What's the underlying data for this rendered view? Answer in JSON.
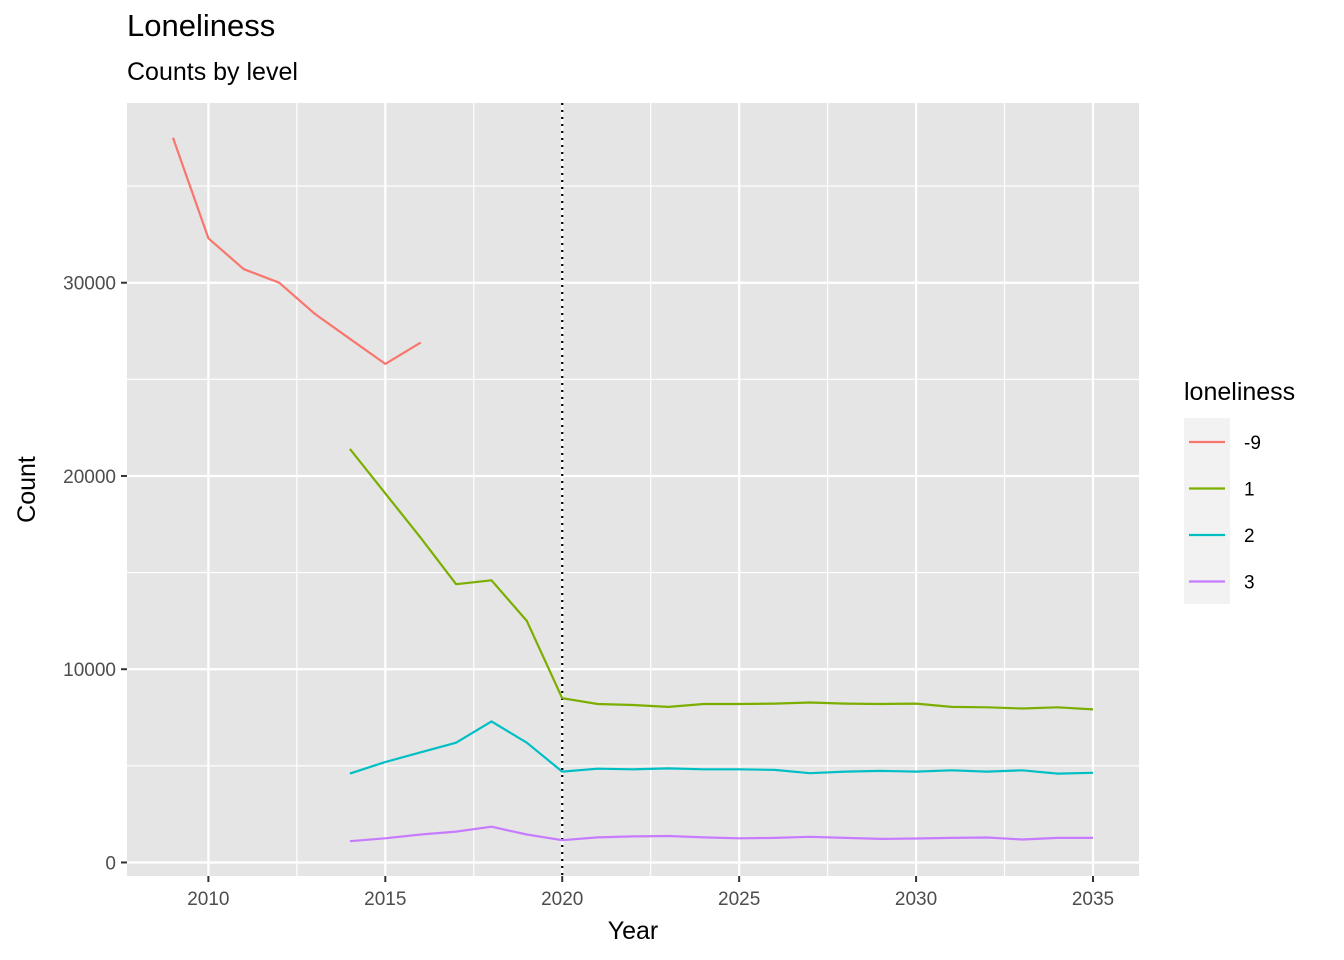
{
  "chart_data": {
    "type": "line",
    "title": "Loneliness",
    "subtitle": "Counts by level",
    "xlabel": "Year",
    "ylabel": "Count",
    "xlim": [
      2007.7,
      2036.3
    ],
    "ylim": [
      -700,
      39300
    ],
    "x_ticks": [
      2010,
      2015,
      2020,
      2025,
      2030,
      2035
    ],
    "y_ticks": [
      0,
      10000,
      20000,
      30000
    ],
    "y_tick_labels": [
      "0",
      "10000",
      "20000",
      "30000"
    ],
    "grid": true,
    "panel_background": "#e5e5e5",
    "vline": {
      "x": 2020,
      "style": "dotted",
      "color": "#000000"
    },
    "legend": {
      "title": "loneliness",
      "position": "right"
    },
    "series": [
      {
        "name": "-9",
        "color": "#f8766d",
        "x": [
          2009,
          2010,
          2011,
          2012,
          2013,
          2014,
          2015,
          2016
        ],
        "y": [
          37500,
          32300,
          30700,
          30000,
          28400,
          27100,
          25800,
          26900
        ]
      },
      {
        "name": "1",
        "color": "#7cae00",
        "x": [
          2014,
          2015,
          2016,
          2017,
          2018,
          2019,
          2020,
          2021,
          2022,
          2023,
          2024,
          2025,
          2026,
          2027,
          2028,
          2029,
          2030,
          2031,
          2032,
          2033,
          2034,
          2035
        ],
        "y": [
          21400,
          19100,
          16800,
          14400,
          14600,
          12500,
          8500,
          8200,
          8150,
          8050,
          8200,
          8200,
          8220,
          8280,
          8220,
          8200,
          8220,
          8050,
          8030,
          7970,
          8030,
          7920
        ]
      },
      {
        "name": "2",
        "color": "#00bfc4",
        "x": [
          2014,
          2015,
          2016,
          2017,
          2018,
          2019,
          2020,
          2021,
          2022,
          2023,
          2024,
          2025,
          2026,
          2027,
          2028,
          2029,
          2030,
          2031,
          2032,
          2033,
          2034,
          2035
        ],
        "y": [
          4600,
          5200,
          5700,
          6200,
          7300,
          6200,
          4700,
          4850,
          4820,
          4870,
          4820,
          4820,
          4790,
          4620,
          4700,
          4740,
          4700,
          4770,
          4700,
          4770,
          4600,
          4640
        ]
      },
      {
        "name": "3",
        "color": "#c77cff",
        "x": [
          2014,
          2015,
          2016,
          2017,
          2018,
          2019,
          2020,
          2021,
          2022,
          2023,
          2024,
          2025,
          2026,
          2027,
          2028,
          2029,
          2030,
          2031,
          2032,
          2033,
          2034,
          2035
        ],
        "y": [
          1100,
          1250,
          1450,
          1600,
          1850,
          1450,
          1150,
          1300,
          1350,
          1370,
          1300,
          1250,
          1270,
          1330,
          1270,
          1220,
          1240,
          1270,
          1290,
          1190,
          1270,
          1270
        ]
      }
    ]
  }
}
